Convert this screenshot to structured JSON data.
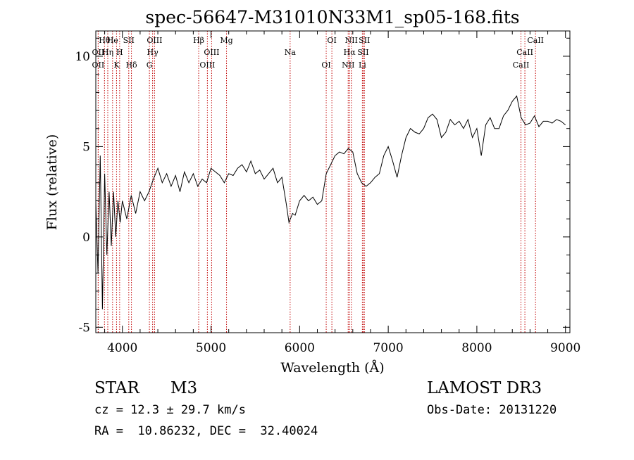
{
  "chart_data": {
    "type": "line",
    "title": "spec-56647-M31010N33M1_sp05-168.fits",
    "xlabel": "Wavelength (Å)",
    "ylabel": "Flux (relative)",
    "xlim": [
      3700,
      9050
    ],
    "ylim": [
      -5.3,
      11.4
    ],
    "x_ticks": [
      4000,
      5000,
      6000,
      7000,
      8000,
      9000
    ],
    "y_ticks": [
      -5,
      0,
      5,
      10
    ],
    "series": [
      {
        "name": "spectrum",
        "x": [
          3700,
          3725,
          3750,
          3775,
          3800,
          3825,
          3850,
          3875,
          3900,
          3925,
          3950,
          3975,
          4000,
          4050,
          4100,
          4150,
          4200,
          4250,
          4300,
          4350,
          4400,
          4450,
          4500,
          4550,
          4600,
          4650,
          4700,
          4750,
          4800,
          4850,
          4900,
          4950,
          5000,
          5050,
          5100,
          5150,
          5200,
          5250,
          5300,
          5350,
          5400,
          5450,
          5500,
          5550,
          5600,
          5650,
          5700,
          5750,
          5800,
          5850,
          5880,
          5920,
          5950,
          6000,
          6050,
          6100,
          6150,
          6200,
          6250,
          6300,
          6350,
          6400,
          6450,
          6500,
          6550,
          6600,
          6650,
          6700,
          6750,
          6800,
          6850,
          6900,
          6950,
          7000,
          7050,
          7100,
          7150,
          7200,
          7250,
          7300,
          7350,
          7400,
          7450,
          7500,
          7550,
          7600,
          7650,
          7700,
          7750,
          7800,
          7850,
          7900,
          7950,
          8000,
          8050,
          8100,
          8150,
          8200,
          8250,
          8300,
          8350,
          8400,
          8450,
          8500,
          8550,
          8600,
          8650,
          8700,
          8750,
          8800,
          8850,
          8900,
          8950,
          9000
        ],
        "values": [
          2.0,
          -2.0,
          4.5,
          -4.0,
          3.5,
          -1.0,
          2.5,
          -0.5,
          2.5,
          0.0,
          2.0,
          0.8,
          2.0,
          1.0,
          2.3,
          1.3,
          2.5,
          2.0,
          2.5,
          3.2,
          3.8,
          3.0,
          3.5,
          2.8,
          3.4,
          2.5,
          3.6,
          3.0,
          3.5,
          2.8,
          3.2,
          3.0,
          3.8,
          3.6,
          3.4,
          3.0,
          3.5,
          3.4,
          3.8,
          4.0,
          3.6,
          4.2,
          3.5,
          3.7,
          3.2,
          3.5,
          3.8,
          3.0,
          3.3,
          1.8,
          0.8,
          1.3,
          1.2,
          2.0,
          2.3,
          2.0,
          2.2,
          1.8,
          2.0,
          3.5,
          4.0,
          4.5,
          4.7,
          4.6,
          4.9,
          4.7,
          3.5,
          3.0,
          2.8,
          3.0,
          3.3,
          3.5,
          4.5,
          5.0,
          4.2,
          3.3,
          4.5,
          5.5,
          6.0,
          5.8,
          5.7,
          6.0,
          6.6,
          6.8,
          6.5,
          5.5,
          5.8,
          6.5,
          6.2,
          6.4,
          6.0,
          6.5,
          5.5,
          6.0,
          4.5,
          6.2,
          6.6,
          6.0,
          6.0,
          6.7,
          7.0,
          7.5,
          7.8,
          6.6,
          6.2,
          6.3,
          6.7,
          6.1,
          6.4,
          6.4,
          6.3,
          6.5,
          6.4,
          6.2
        ]
      }
    ],
    "line_labels": [
      {
        "text": "Hθ",
        "x": 3798
      },
      {
        "text": "OII",
        "x": 3727
      },
      {
        "text": "OII",
        "x": 3727
      },
      {
        "text": "He",
        "x": 3889
      },
      {
        "text": "Hη",
        "x": 3835
      },
      {
        "text": "K",
        "x": 3934
      },
      {
        "text": "SII",
        "x": 4072
      },
      {
        "text": "H",
        "x": 3969
      },
      {
        "text": "Hδ",
        "x": 4102
      },
      {
        "text": "OIII",
        "x": 4363
      },
      {
        "text": "Hγ",
        "x": 4341
      },
      {
        "text": "G",
        "x": 4305
      },
      {
        "text": "Hβ",
        "x": 4861
      },
      {
        "text": "OIII",
        "x": 5007
      },
      {
        "text": "OIII",
        "x": 4959
      },
      {
        "text": "Mg",
        "x": 5175
      },
      {
        "text": "Na",
        "x": 5893
      },
      {
        "text": "OI",
        "x": 6300
      },
      {
        "text": "OI",
        "x": 6364
      },
      {
        "text": "Hα",
        "x": 6563
      },
      {
        "text": "NII",
        "x": 6548
      },
      {
        "text": "NII",
        "x": 6584
      },
      {
        "text": "SII",
        "x": 6717
      },
      {
        "text": "Li",
        "x": 6708
      },
      {
        "text": "SII",
        "x": 6731
      },
      {
        "text": "CaII",
        "x": 8542
      },
      {
        "text": "CaII",
        "x": 8498
      },
      {
        "text": "CaII",
        "x": 8662
      }
    ]
  },
  "info": {
    "object_class": "STAR",
    "subclass": "M3",
    "survey": "LAMOST DR3",
    "redshift": "cz = 12.3 ± 29.7 km/s",
    "obs_date": "Obs-Date: 20131220",
    "coords": "RA =  10.86232, DEC =  32.40024"
  }
}
